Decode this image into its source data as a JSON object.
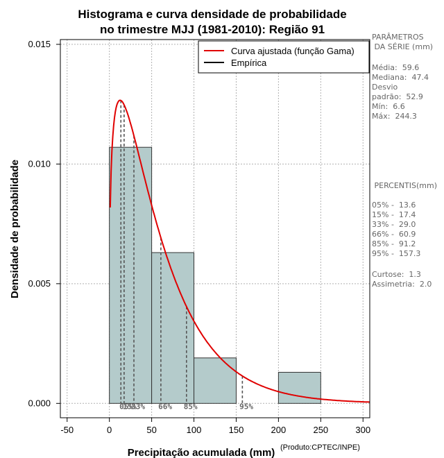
{
  "chart_data": {
    "type": "histogram",
    "title_line1": "Histograma e curva densidade de probabilidade",
    "title_line2": "no trimestre MJJ (1981-2010): Região 91",
    "xlabel": "Precipitação acumulada (mm)",
    "ylabel": "Densidade de probabilidade",
    "xlim": [
      -58,
      308
    ],
    "ylim": [
      -0.0006,
      0.0152
    ],
    "x_ticks": [
      -50,
      0,
      50,
      100,
      150,
      200,
      250,
      300
    ],
    "x_tick_labels": [
      "-50",
      "0",
      "50",
      "100",
      "150",
      "200",
      "250",
      "300"
    ],
    "y_ticks": [
      0,
      0.005,
      0.01,
      0.015
    ],
    "y_tick_labels": [
      "0.000",
      "0.005",
      "0.010",
      "0.015"
    ],
    "grid": true,
    "bins": [
      {
        "start": 0,
        "end": 50,
        "density": 0.0107
      },
      {
        "start": 50,
        "end": 100,
        "density": 0.0063
      },
      {
        "start": 100,
        "end": 150,
        "density": 0.0019
      },
      {
        "start": 150,
        "end": 200,
        "density": 0.0
      },
      {
        "start": 200,
        "end": 250,
        "density": 0.0013
      }
    ],
    "gamma_fit": {
      "shape": 1.27,
      "scale": 46.9,
      "x_start": 1,
      "x_end": 308
    },
    "percentile_markers": [
      {
        "label": "05%",
        "x": 13.6
      },
      {
        "label": "15%",
        "x": 17.4
      },
      {
        "label": "33%",
        "x": 29.0
      },
      {
        "label": "66%",
        "x": 60.9
      },
      {
        "label": "85%",
        "x": 91.2
      },
      {
        "label": "95%",
        "x": 157.3
      }
    ],
    "percentile_label_text": [
      "05%",
      "15%",
      "33%",
      "66%",
      "85%",
      "95%"
    ],
    "legend": {
      "position": "top-right",
      "entries": [
        {
          "label": "Curva ajustada (função Gama)",
          "color": "#e00000"
        },
        {
          "label": "Empírica",
          "color": "#000000"
        }
      ]
    }
  },
  "colors": {
    "bar_fill": "#b4cbcb",
    "bar_stroke": "#333333",
    "curve": "#e00000",
    "marker": "#555555",
    "grid": "#b0b0b0"
  },
  "side_panel": {
    "params_title_1": "PARÂMETROS",
    "params_title_2": " DA SÉRIE (mm)",
    "media": "Média:  59.6",
    "mediana": "Mediana:  47.4",
    "desvio_1": "Desvio",
    "desvio_2": "padrão:  52.9",
    "min": "Mín:  6.6",
    "max": "Máx:  244.3",
    "percentis_title": " PERCENTIS(mm)",
    "p05": "05% -  13.6",
    "p15": "15% -  17.4",
    "p33": "33% -  29.0",
    "p66": "66% -  60.9",
    "p85": "85% -  91.2",
    "p95": "95% -  157.3",
    "curtose": "Curtose:  1.3",
    "assimetria": "Assimetria:  2.0"
  },
  "credit": "(Produto:CPTEC/INPE)"
}
